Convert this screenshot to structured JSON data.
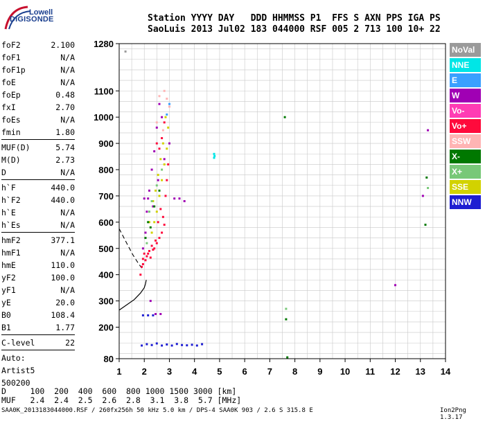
{
  "logo": {
    "top": "Lowell",
    "bottom": "DIGISONDE"
  },
  "header": {
    "row1": "Station YYYY DAY   DDD HHMMSS P1  FFS S AXN PPS IGA PS",
    "row2": "SaoLuis 2013 Jul02 183 044000 RSF 005 2 713 100 10+ 22"
  },
  "params": [
    {
      "k": "foF2",
      "v": "2.100"
    },
    {
      "k": "foF1",
      "v": "N/A"
    },
    {
      "k": "foF1p",
      "v": "N/A"
    },
    {
      "k": "foE",
      "v": "N/A"
    },
    {
      "k": "foEp",
      "v": "0.48"
    },
    {
      "k": "fxI",
      "v": "2.70"
    },
    {
      "k": "foEs",
      "v": "N/A"
    },
    {
      "k": "fmin",
      "v": "1.80"
    },
    {
      "sep": true
    },
    {
      "k": "MUF(D)",
      "v": "5.74"
    },
    {
      "k": "M(D)",
      "v": "2.73"
    },
    {
      "k": "D",
      "v": "N/A"
    },
    {
      "sep": true
    },
    {
      "k": "h`F",
      "v": "440.0"
    },
    {
      "k": "h`F2",
      "v": "440.0"
    },
    {
      "k": "h`E",
      "v": "N/A"
    },
    {
      "k": "h`Es",
      "v": "N/A"
    },
    {
      "sep": true
    },
    {
      "k": "hmF2",
      "v": "377.1"
    },
    {
      "k": "hmF1",
      "v": "N/A"
    },
    {
      "k": "hmE",
      "v": "110.0"
    },
    {
      "k": "yF2",
      "v": "100.0"
    },
    {
      "k": "yF1",
      "v": "N/A"
    },
    {
      "k": "yE",
      "v": "20.0"
    },
    {
      "k": "B0",
      "v": "108.4"
    },
    {
      "k": "B1",
      "v": "1.77"
    },
    {
      "sep": true
    },
    {
      "k": "C-level",
      "v": "22"
    },
    {
      "sep": true
    },
    {
      "text": "Auto:"
    },
    {
      "text": "Artist5"
    },
    {
      "text": "500200"
    }
  ],
  "legend": [
    {
      "label": "NoVal",
      "color": "#9a9a9a"
    },
    {
      "label": "NNE",
      "color": "#00e6e6"
    },
    {
      "label": "E",
      "color": "#3aa0ff"
    },
    {
      "label": "W",
      "color": "#a000b4"
    },
    {
      "label": "Vo-",
      "color": "#ff3cb4"
    },
    {
      "label": "Vo+",
      "color": "#ff0a3c"
    },
    {
      "label": "SSW",
      "color": "#ffb4b4"
    },
    {
      "label": "X-",
      "color": "#007800"
    },
    {
      "label": "X+",
      "color": "#78c878"
    },
    {
      "label": "SSE",
      "color": "#d2d200"
    },
    {
      "label": "NNW",
      "color": "#1e1ed2"
    }
  ],
  "table": {
    "row1": "D     100  200  400  600  800 1000 1500 3000 [km]",
    "row2": "MUF   2.4  2.4  2.5  2.6  2.8  3.1  3.8  5.7 [MHz]"
  },
  "footer": {
    "text": "SAA0K_2013183044000.RSF / 260fx256h 50 kHz 5.0 km / DPS-4 SAA0K 903 / 2.6 S 315.8 E",
    "version": "Ion2Png 1.3.17"
  },
  "chart_data": {
    "type": "scatter",
    "title": "",
    "xlabel": "",
    "ylabel": "",
    "xlim": [
      1,
      14
    ],
    "ylim": [
      80,
      1280
    ],
    "x_ticks": [
      1,
      2,
      3,
      4,
      5,
      6,
      7,
      8,
      9,
      10,
      11,
      12,
      13,
      14
    ],
    "y_ticks": [
      80,
      200,
      300,
      400,
      500,
      600,
      700,
      800,
      900,
      1000,
      1100,
      1280
    ],
    "grid": true,
    "profile_curve": [
      [
        1.0,
        265
      ],
      [
        1.3,
        285
      ],
      [
        1.6,
        305
      ],
      [
        1.85,
        330
      ],
      [
        2.0,
        350
      ],
      [
        2.05,
        365
      ],
      [
        2.08,
        380
      ]
    ],
    "profile_dashed": [
      [
        1.0,
        575
      ],
      [
        1.3,
        520
      ],
      [
        1.55,
        475
      ],
      [
        1.75,
        445
      ],
      [
        1.9,
        425
      ]
    ],
    "series": [
      {
        "color": "#ff0a3c",
        "points": [
          [
            1.85,
            400
          ],
          [
            1.9,
            430
          ],
          [
            1.95,
            460
          ],
          [
            2.0,
            480
          ],
          [
            2.1,
            470
          ],
          [
            2.2,
            490
          ],
          [
            2.3,
            510
          ],
          [
            2.4,
            500
          ],
          [
            2.5,
            520
          ],
          [
            2.6,
            540
          ],
          [
            2.7,
            560
          ],
          [
            2.8,
            590
          ],
          [
            2.55,
            600
          ],
          [
            2.65,
            650
          ],
          [
            1.95,
            440
          ],
          [
            2.05,
            455
          ],
          [
            2.15,
            480
          ],
          [
            2.25,
            465
          ],
          [
            2.35,
            495
          ],
          [
            2.45,
            530
          ],
          [
            2.75,
            620
          ],
          [
            2.85,
            700
          ],
          [
            2.9,
            760
          ],
          [
            2.95,
            820
          ],
          [
            2.6,
            880
          ],
          [
            2.7,
            920
          ],
          [
            2.8,
            980
          ],
          [
            2.5,
            900
          ]
        ]
      },
      {
        "color": "#a000b4",
        "points": [
          [
            1.95,
            500
          ],
          [
            2.05,
            560
          ],
          [
            2.1,
            640
          ],
          [
            2.0,
            690
          ],
          [
            2.2,
            720
          ],
          [
            2.3,
            800
          ],
          [
            2.4,
            870
          ],
          [
            2.5,
            960
          ],
          [
            2.6,
            1050
          ],
          [
            2.7,
            1000
          ],
          [
            2.35,
            660
          ],
          [
            2.15,
            690
          ],
          [
            2.55,
            760
          ],
          [
            2.8,
            840
          ],
          [
            3.0,
            900
          ],
          [
            3.2,
            690
          ],
          [
            3.4,
            690
          ],
          [
            3.6,
            680
          ],
          [
            12.0,
            360
          ],
          [
            13.1,
            700
          ],
          [
            13.3,
            950
          ],
          [
            2.25,
            300
          ],
          [
            2.45,
            250
          ],
          [
            2.65,
            250
          ]
        ]
      },
      {
        "color": "#d2d200",
        "points": [
          [
            2.3,
            560
          ],
          [
            2.4,
            600
          ],
          [
            2.5,
            640
          ],
          [
            2.6,
            700
          ],
          [
            2.7,
            760
          ],
          [
            2.8,
            820
          ],
          [
            2.9,
            880
          ],
          [
            2.45,
            720
          ],
          [
            2.55,
            780
          ],
          [
            2.65,
            840
          ],
          [
            2.75,
            900
          ],
          [
            2.2,
            600
          ],
          [
            2.35,
            680
          ],
          [
            2.85,
            1000
          ],
          [
            2.95,
            960
          ]
        ]
      },
      {
        "color": "#007800",
        "points": [
          [
            2.05,
            540
          ],
          [
            2.15,
            600
          ],
          [
            2.25,
            580
          ],
          [
            2.4,
            660
          ],
          [
            2.6,
            720
          ],
          [
            7.6,
            1000
          ],
          [
            7.65,
            230
          ],
          [
            7.7,
            85
          ],
          [
            13.2,
            590
          ],
          [
            13.25,
            770
          ]
        ]
      },
      {
        "color": "#78c878",
        "points": [
          [
            2.1,
            520
          ],
          [
            2.2,
            640
          ],
          [
            2.3,
            680
          ],
          [
            2.5,
            740
          ],
          [
            2.7,
            800
          ],
          [
            7.65,
            270
          ],
          [
            13.3,
            730
          ]
        ]
      },
      {
        "color": "#ffb4b4",
        "points": [
          [
            2.6,
            1080
          ],
          [
            2.8,
            1100
          ],
          [
            3.0,
            1040
          ],
          [
            2.5,
            980
          ],
          [
            2.75,
            950
          ],
          [
            2.9,
            1070
          ]
        ]
      },
      {
        "color": "#00e6e6",
        "points": [
          [
            4.78,
            845
          ],
          [
            4.78,
            860
          ],
          [
            4.8,
            852
          ]
        ]
      },
      {
        "color": "#1e1ed2",
        "points": [
          [
            1.9,
            130
          ],
          [
            2.1,
            135
          ],
          [
            2.3,
            132
          ],
          [
            2.5,
            138
          ],
          [
            2.7,
            130
          ],
          [
            2.9,
            134
          ],
          [
            3.1,
            130
          ],
          [
            3.3,
            136
          ],
          [
            3.5,
            132
          ],
          [
            3.7,
            131
          ],
          [
            3.9,
            133
          ],
          [
            4.1,
            130
          ],
          [
            4.3,
            135
          ],
          [
            1.95,
            245
          ],
          [
            2.15,
            245
          ],
          [
            2.35,
            245
          ]
        ]
      },
      {
        "color": "#3aa0ff",
        "points": [
          [
            2.9,
            1010
          ],
          [
            3.0,
            1050
          ]
        ]
      },
      {
        "color": "#9a9a9a",
        "points": [
          [
            1.25,
            1250
          ]
        ]
      }
    ]
  }
}
